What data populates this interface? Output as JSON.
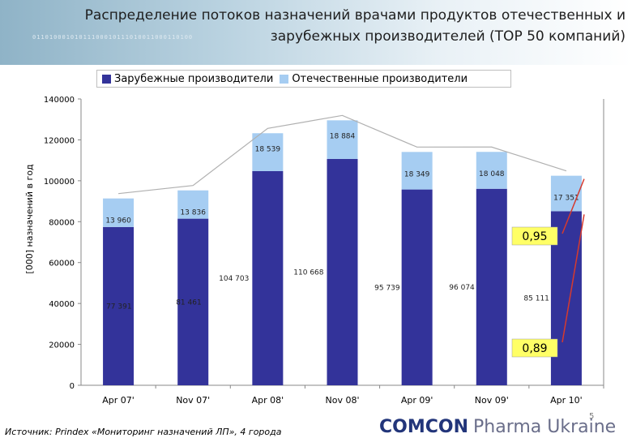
{
  "header": {
    "title_line1": "Распределение потоков назначений врачами продуктов отечественных и",
    "title_line2": "зарубежных производителей (ТОР 50 компаний)"
  },
  "legend": {
    "foreign": "Зарубежные производители",
    "domestic": "Отечественные производители"
  },
  "colors": {
    "foreign": "#33339a",
    "domestic": "#a6cdf2",
    "arrow": "#d63a2e",
    "callout_bg": "#ffff66"
  },
  "chart_data": {
    "type": "bar",
    "stacked": true,
    "categories": [
      "Apr 07'",
      "Nov 07'",
      "Apr 08'",
      "Nov 08'",
      "Apr 09'",
      "Nov 09'",
      "Apr 10'"
    ],
    "series": [
      {
        "name": "Зарубежные производители",
        "values": [
          77391,
          81461,
          104703,
          110668,
          95739,
          96074,
          85111
        ],
        "labels": [
          "77 391",
          "81 461",
          "104 703",
          "110 668",
          "95 739",
          "96 074",
          "85 111"
        ]
      },
      {
        "name": "Отечественные производители",
        "values": [
          13960,
          13836,
          18539,
          18884,
          18349,
          18048,
          17351
        ],
        "labels": [
          "13 960",
          "13 836",
          "18 539",
          "18 884",
          "18 349",
          "18 048",
          "17 351"
        ]
      }
    ],
    "ylabel": "[000] назначений в год",
    "ylim": [
      0,
      140000
    ],
    "yticks": [
      0,
      20000,
      40000,
      60000,
      80000,
      100000,
      120000,
      140000
    ],
    "ytick_labels": [
      "0",
      "20000",
      "40000",
      "60000",
      "80000",
      "100000",
      "120000",
      "140000"
    ],
    "grid": false,
    "legend_position": "top",
    "annotations": [
      "0,95",
      "0,89"
    ]
  },
  "footer": {
    "source": "Источник: Prindex «Мониторинг назначений ЛП», 4 города",
    "page": "5",
    "logo_main": "COMCON",
    "logo_sub": "Pharma Ukraine"
  }
}
